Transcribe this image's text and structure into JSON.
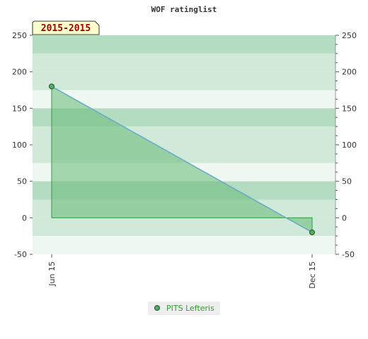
{
  "chart_data": {
    "type": "area",
    "title": "WOF ratinglist",
    "subtitle": "2015-2015",
    "x_tick_labels": [
      "Jun 15",
      "Dec 15"
    ],
    "x": [
      "Jun 15",
      "Dec 15"
    ],
    "series": [
      {
        "name": "PITS Lefteris",
        "values": [
          180,
          -20
        ]
      }
    ],
    "ylim": [
      -50,
      250
    ],
    "y_ticks": [
      -50,
      0,
      50,
      100,
      150,
      200,
      250
    ],
    "y_axis_sides": "left-and-right",
    "grid": "alternating-bands",
    "legend_position": "bottom-center",
    "colors": {
      "series_fill": "#66bb77",
      "series_line": "#66aacc",
      "series_border": "#339944",
      "marker_fill": "#55aa66",
      "marker_stroke": "#225522",
      "band_dark": "#b3dcc0",
      "band_mid": "#d0e9d8",
      "band_light": "#eef7f0",
      "badge_bg": "#ffffcc",
      "badge_text": "#990000",
      "legend_bg": "#eeeeee",
      "legend_text": "#339933"
    }
  }
}
